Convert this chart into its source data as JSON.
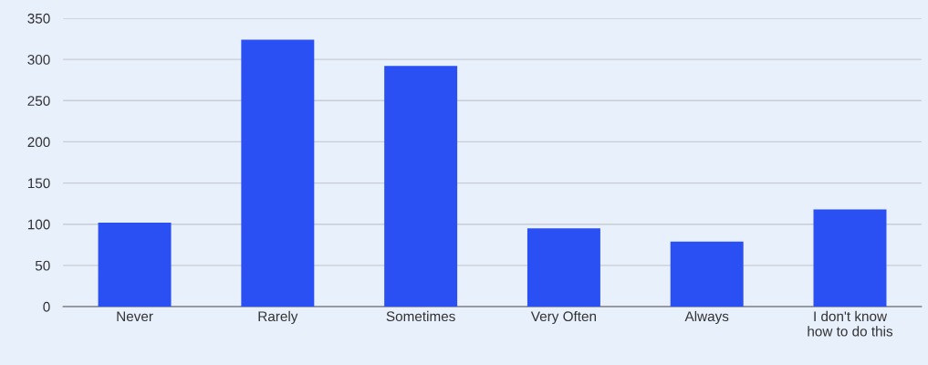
{
  "chart_data": {
    "type": "bar",
    "categories": [
      "Never",
      "Rarely",
      "Sometimes",
      "Very Often",
      "Always",
      "I don't know\nhow to do this"
    ],
    "values": [
      102,
      324,
      292,
      95,
      79,
      118
    ],
    "color": "#2a4ff2",
    "ylim": [
      0,
      350
    ],
    "yticks": [
      0,
      50,
      100,
      150,
      200,
      250,
      300,
      350
    ],
    "grid": "y"
  }
}
